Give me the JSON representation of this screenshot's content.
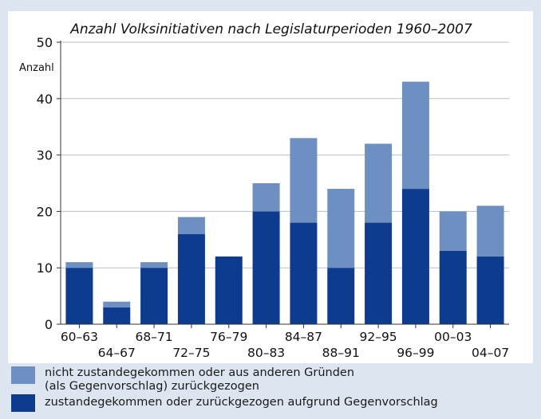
{
  "chart_data": {
    "type": "bar",
    "stacked": true,
    "title": "Anzahl Volksinitiativen nach Legislaturperioden 1960–2007",
    "ylabel": "Anzahl",
    "xlabel": "",
    "ylim": [
      0,
      50
    ],
    "yticks": [
      0,
      10,
      20,
      30,
      40,
      50
    ],
    "grid": true,
    "categories": [
      "60–63",
      "64–67",
      "68–71",
      "72–75",
      "76–79",
      "80–83",
      "84–87",
      "88–91",
      "92–95",
      "96–99",
      "00–03",
      "04–07"
    ],
    "series": [
      {
        "name": "zustandegekommen oder zurückgezogen aufgrund Gegenvorschlag",
        "color": "#0d3b8e",
        "values": [
          10,
          3,
          10,
          16,
          12,
          20,
          18,
          10,
          18,
          24,
          13,
          12
        ]
      },
      {
        "name": "nicht zustandegekommen oder aus anderen Gründen (als Gegenvorschlag) zurückgezogen",
        "color": "#6d8fc2",
        "values": [
          1,
          1,
          1,
          3,
          0,
          5,
          15,
          14,
          14,
          19,
          7,
          9
        ]
      }
    ]
  },
  "legend": {
    "light_line1": "nicht zustandegekommen oder aus anderen Gründen",
    "light_line2": "(als Gegenvorschlag) zurückgezogen",
    "dark_line": "zustandegekommen oder zurückgezogen aufgrund Gegenvorschlag",
    "light_color": "#6d8fc2",
    "dark_color": "#0d3b8e"
  }
}
